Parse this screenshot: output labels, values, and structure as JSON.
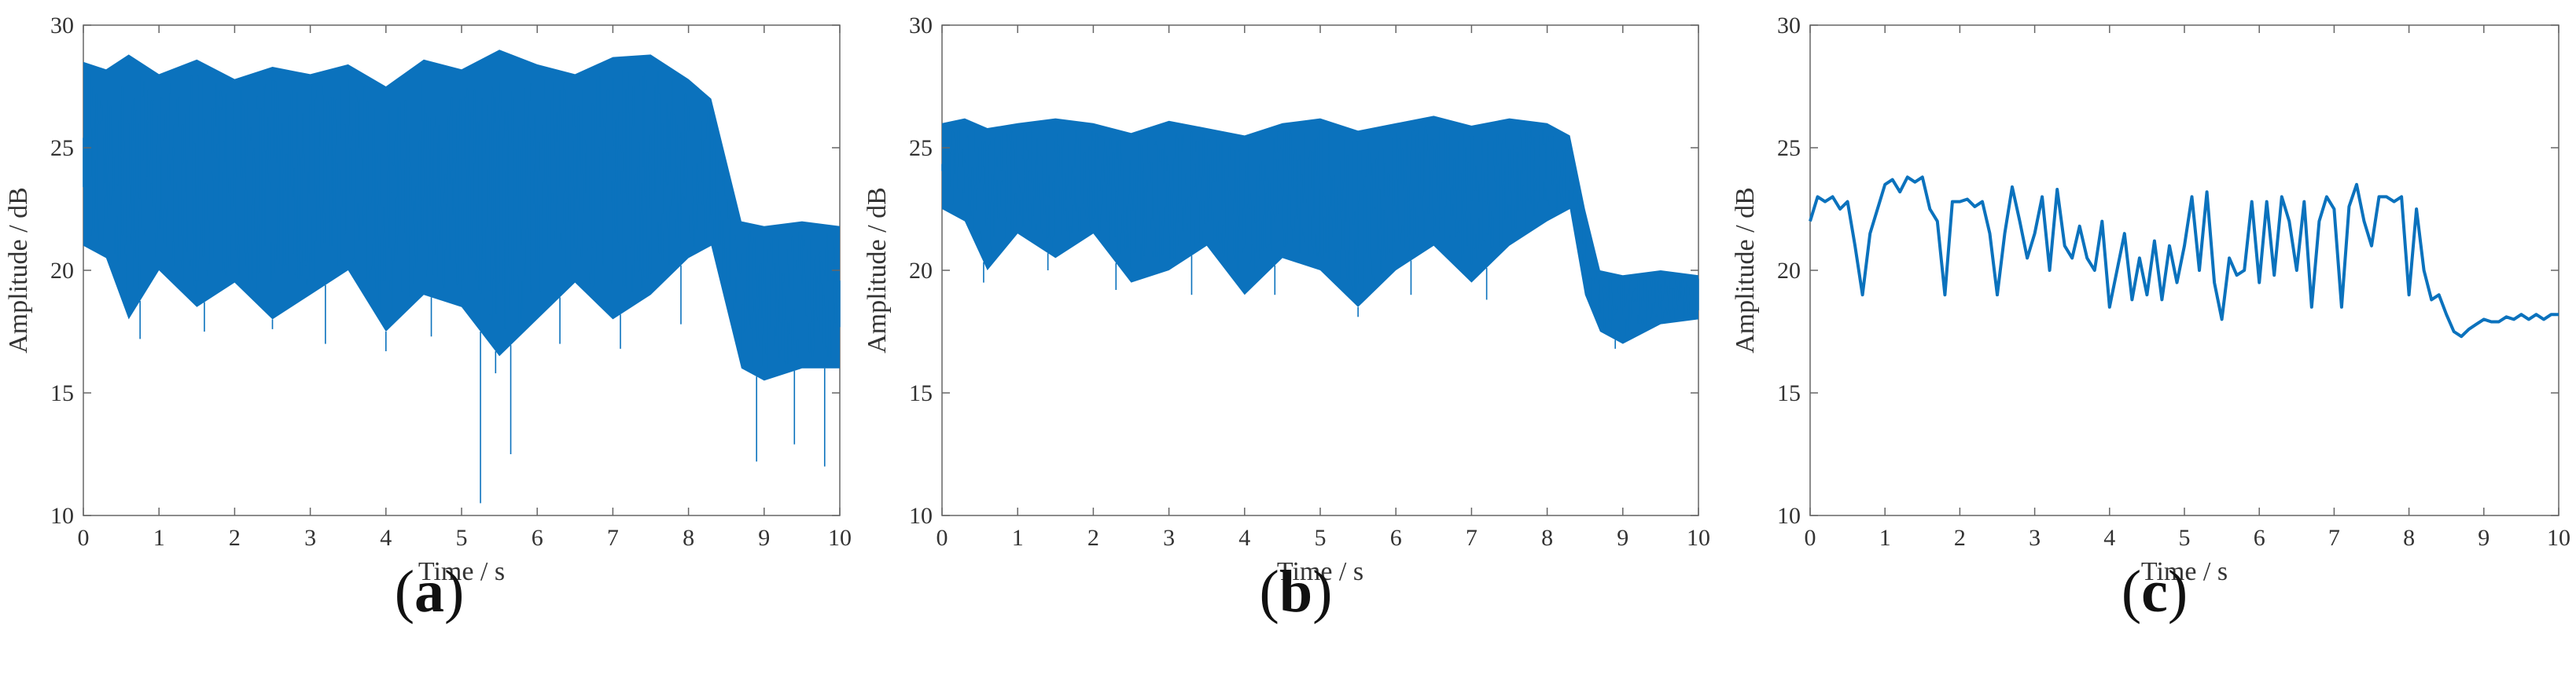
{
  "figure": {
    "panels": [
      {
        "label_open": "(",
        "letter": "a",
        "label_close": ")"
      },
      {
        "label_open": "(",
        "letter": "b",
        "label_close": ")"
      },
      {
        "label_open": "(",
        "letter": "c",
        "label_close": ")"
      }
    ]
  },
  "style": {
    "line_color": "#0b72bd",
    "axis_color": "#666666"
  },
  "chart_data": [
    {
      "type": "line",
      "panel": "a",
      "title": "",
      "xlabel": "Time / s",
      "ylabel": "Amplitude / dB",
      "xlim": [
        0,
        10
      ],
      "ylim": [
        10,
        30
      ],
      "xticks": [
        "0",
        "1",
        "2",
        "3",
        "4",
        "5",
        "6",
        "7",
        "8",
        "9",
        "10"
      ],
      "yticks": [
        "10",
        "15",
        "20",
        "25",
        "30"
      ],
      "grid": false,
      "legend": "none",
      "series": [
        {
          "style": "dense band",
          "x": [
            0,
            0.3,
            0.6,
            1.0,
            1.5,
            2.0,
            2.5,
            3.0,
            3.5,
            4.0,
            4.5,
            5.0,
            5.5,
            6.0,
            6.5,
            7.0,
            7.5,
            8.0,
            8.3,
            8.5,
            8.7,
            9.0,
            9.5,
            10.0
          ],
          "upper": [
            28.5,
            28.2,
            28.8,
            28.0,
            28.6,
            27.8,
            28.3,
            28.0,
            28.4,
            27.5,
            28.6,
            28.2,
            29.0,
            28.4,
            28.0,
            28.7,
            28.8,
            27.8,
            27.0,
            24.5,
            22.0,
            21.8,
            22.0,
            21.8
          ],
          "lower": [
            21.0,
            20.5,
            18.0,
            20.0,
            18.5,
            19.5,
            18.0,
            19.0,
            20.0,
            17.5,
            19.0,
            18.5,
            16.5,
            18.0,
            19.5,
            18.0,
            19.0,
            20.5,
            21.0,
            18.5,
            16.0,
            15.5,
            16.0,
            16.0
          ],
          "spikes": [
            {
              "x": 0.75,
              "y": 17.2
            },
            {
              "x": 1.6,
              "y": 17.5
            },
            {
              "x": 2.5,
              "y": 17.6
            },
            {
              "x": 3.2,
              "y": 17.0
            },
            {
              "x": 4.0,
              "y": 16.7
            },
            {
              "x": 4.6,
              "y": 17.3
            },
            {
              "x": 5.25,
              "y": 10.5
            },
            {
              "x": 5.45,
              "y": 15.8
            },
            {
              "x": 5.65,
              "y": 12.5
            },
            {
              "x": 6.3,
              "y": 17.0
            },
            {
              "x": 7.1,
              "y": 16.8
            },
            {
              "x": 7.9,
              "y": 17.8
            },
            {
              "x": 8.9,
              "y": 12.2
            },
            {
              "x": 9.4,
              "y": 12.9
            },
            {
              "x": 9.8,
              "y": 12.0
            }
          ]
        }
      ]
    },
    {
      "type": "line",
      "panel": "b",
      "title": "",
      "xlabel": "Time / s",
      "ylabel": "Amplitude / dB",
      "xlim": [
        0,
        10
      ],
      "ylim": [
        10,
        30
      ],
      "xticks": [
        "0",
        "1",
        "2",
        "3",
        "4",
        "5",
        "6",
        "7",
        "8",
        "9",
        "10"
      ],
      "yticks": [
        "10",
        "15",
        "20",
        "25",
        "30"
      ],
      "grid": false,
      "legend": "none",
      "series": [
        {
          "style": "dense band",
          "x": [
            0,
            0.3,
            0.6,
            1.0,
            1.5,
            2.0,
            2.5,
            3.0,
            3.5,
            4.0,
            4.5,
            5.0,
            5.5,
            6.0,
            6.5,
            7.0,
            7.5,
            8.0,
            8.3,
            8.5,
            8.7,
            9.0,
            9.5,
            10.0
          ],
          "upper": [
            26.0,
            26.2,
            25.8,
            26.0,
            26.2,
            26.0,
            25.6,
            26.1,
            25.8,
            25.5,
            26.0,
            26.2,
            25.7,
            26.0,
            26.3,
            25.9,
            26.2,
            26.0,
            25.5,
            22.5,
            20.0,
            19.8,
            20.0,
            19.8
          ],
          "lower": [
            22.5,
            22.0,
            20.0,
            21.5,
            20.5,
            21.5,
            19.5,
            20.0,
            21.0,
            19.0,
            20.5,
            20.0,
            18.5,
            20.0,
            21.0,
            19.5,
            21.0,
            22.0,
            22.5,
            19.0,
            17.5,
            17.0,
            17.8,
            18.0
          ],
          "spikes": [
            {
              "x": 0.55,
              "y": 19.5
            },
            {
              "x": 1.4,
              "y": 20.0
            },
            {
              "x": 2.3,
              "y": 19.2
            },
            {
              "x": 3.3,
              "y": 19.0
            },
            {
              "x": 4.4,
              "y": 19.0
            },
            {
              "x": 5.5,
              "y": 18.1
            },
            {
              "x": 6.2,
              "y": 19.0
            },
            {
              "x": 7.2,
              "y": 18.8
            },
            {
              "x": 8.9,
              "y": 16.8
            }
          ]
        }
      ]
    },
    {
      "type": "line",
      "panel": "c",
      "title": "",
      "xlabel": "Time / s",
      "ylabel": "Amplitude / dB",
      "xlim": [
        0,
        10
      ],
      "ylim": [
        10,
        30
      ],
      "xticks": [
        "0",
        "1",
        "2",
        "3",
        "4",
        "5",
        "6",
        "7",
        "8",
        "9",
        "10"
      ],
      "yticks": [
        "10",
        "15",
        "20",
        "25",
        "30"
      ],
      "grid": false,
      "legend": "none",
      "series": [
        {
          "style": "line",
          "x": [
            0.0,
            0.1,
            0.2,
            0.3,
            0.4,
            0.5,
            0.6,
            0.7,
            0.8,
            0.9,
            1.0,
            1.1,
            1.2,
            1.3,
            1.4,
            1.5,
            1.6,
            1.7,
            1.8,
            1.9,
            2.0,
            2.1,
            2.2,
            2.3,
            2.4,
            2.5,
            2.6,
            2.7,
            2.8,
            2.9,
            3.0,
            3.1,
            3.2,
            3.3,
            3.4,
            3.5,
            3.6,
            3.7,
            3.8,
            3.9,
            4.0,
            4.1,
            4.2,
            4.3,
            4.4,
            4.5,
            4.6,
            4.7,
            4.8,
            4.9,
            5.0,
            5.1,
            5.2,
            5.3,
            5.4,
            5.5,
            5.6,
            5.7,
            5.8,
            5.9,
            6.0,
            6.1,
            6.2,
            6.3,
            6.4,
            6.5,
            6.6,
            6.7,
            6.8,
            6.9,
            7.0,
            7.1,
            7.2,
            7.3,
            7.4,
            7.5,
            7.6,
            7.7,
            7.8,
            7.9,
            8.0,
            8.1,
            8.2,
            8.3,
            8.4,
            8.5,
            8.6,
            8.7,
            8.8,
            8.9,
            9.0,
            9.1,
            9.2,
            9.3,
            9.4,
            9.5,
            9.6,
            9.7,
            9.8,
            9.9,
            10.0
          ],
          "y": [
            22.0,
            23.0,
            22.8,
            23.0,
            22.5,
            22.8,
            21.0,
            19.0,
            21.5,
            22.5,
            23.5,
            23.7,
            23.2,
            23.8,
            23.6,
            23.8,
            22.5,
            22.0,
            19.0,
            22.8,
            22.8,
            22.9,
            22.6,
            22.8,
            21.5,
            19.0,
            21.5,
            23.4,
            22.0,
            20.5,
            21.5,
            23.0,
            20.0,
            23.3,
            21.0,
            20.5,
            21.8,
            20.5,
            20.0,
            22.0,
            18.5,
            20.0,
            21.5,
            18.8,
            20.5,
            19.0,
            21.2,
            18.8,
            21.0,
            19.5,
            21.0,
            23.0,
            20.0,
            23.2,
            19.5,
            18.0,
            20.5,
            19.8,
            20.0,
            22.8,
            19.5,
            22.8,
            19.8,
            23.0,
            22.0,
            20.0,
            22.8,
            18.5,
            22.0,
            23.0,
            22.5,
            18.5,
            22.6,
            23.5,
            22.0,
            21.0,
            23.0,
            23.0,
            22.8,
            23.0,
            19.0,
            22.5,
            20.0,
            18.8,
            19.0,
            18.2,
            17.5,
            17.3,
            17.6,
            17.8,
            18.0,
            17.9,
            17.9,
            18.1,
            18.0,
            18.2,
            18.0,
            18.2,
            18.0,
            18.2,
            18.2
          ]
        }
      ]
    }
  ]
}
